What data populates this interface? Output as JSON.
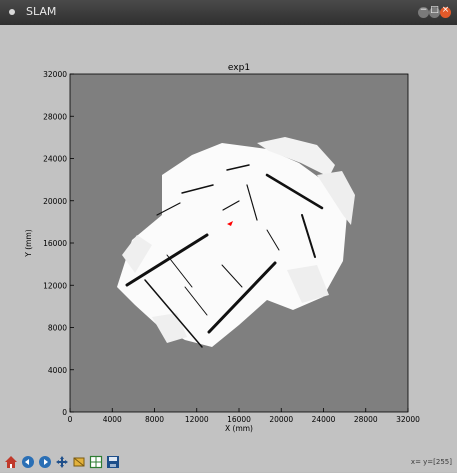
{
  "window": {
    "title": "SLAM"
  },
  "icons": {
    "app": "app-menu-icon",
    "minimize": "minimize-icon",
    "maximize": "maximize-icon",
    "close": "close-icon"
  },
  "plot": {
    "title": "exp1",
    "xlabel": "X (mm)",
    "ylabel": "Y (mm)",
    "x_ticks": [
      "0",
      "4000",
      "8000",
      "12000",
      "16000",
      "20000",
      "24000",
      "28000",
      "32000"
    ],
    "y_ticks": [
      "0",
      "4000",
      "8000",
      "12000",
      "16000",
      "20000",
      "24000",
      "28000",
      "32000"
    ]
  },
  "toolbar": {
    "buttons": [
      {
        "name": "home-button",
        "icon": "home-icon"
      },
      {
        "name": "back-button",
        "icon": "back-arrow-icon"
      },
      {
        "name": "forward-button",
        "icon": "forward-arrow-icon"
      },
      {
        "name": "pan-button",
        "icon": "pan-icon"
      },
      {
        "name": "zoom-button",
        "icon": "zoom-icon"
      },
      {
        "name": "subplots-button",
        "icon": "subplots-icon"
      },
      {
        "name": "save-button",
        "icon": "save-icon"
      }
    ],
    "coords": "x= y=[255]"
  },
  "colors": {
    "background": "#c2c2c2",
    "map_unknown": "#7f7f7f",
    "map_free": "#ffffff",
    "map_occupied": "#000000",
    "robot": "#ff0000",
    "close_button": "#e45a2a"
  }
}
